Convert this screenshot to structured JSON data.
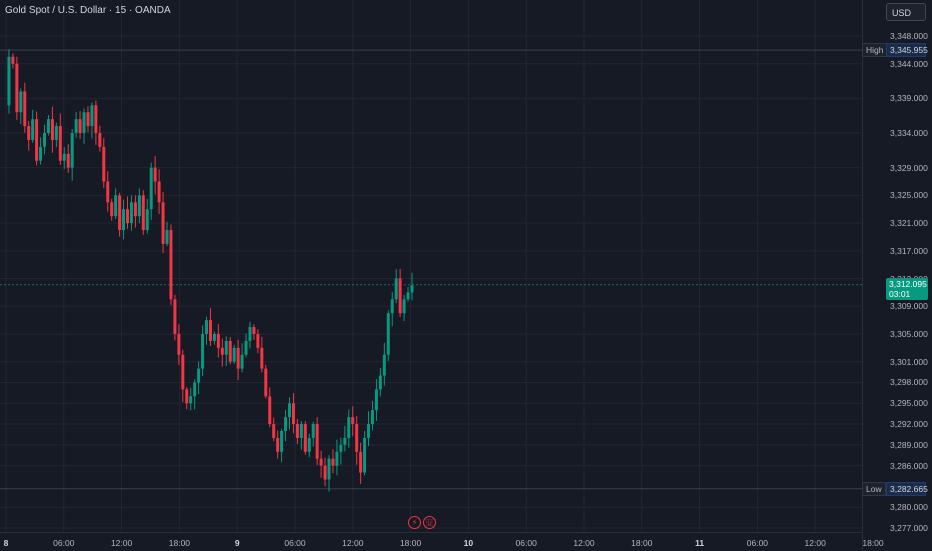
{
  "header": {
    "title": "Gold Spot / U.S. Dollar · 15 · OANDA"
  },
  "currency": "USD",
  "colors": {
    "up": "#089981",
    "down": "#f23645",
    "grid": "#232632",
    "line": "#3a3f4b"
  },
  "chart_data": {
    "type": "candlestick",
    "symbol": "Gold Spot / U.S. Dollar",
    "interval": "15",
    "source": "OANDA",
    "ylim": [
      3276,
      3350
    ],
    "price_ticks": [
      "3,348.000",
      "3,344.000",
      "3,339.000",
      "3,334.000",
      "3,329.000",
      "3,325.000",
      "3,321.000",
      "3,317.000",
      "3,313.000",
      "3,309.000",
      "3,305.000",
      "3,301.000",
      "3,298.000",
      "3,295.000",
      "3,292.000",
      "3,289.000",
      "3,286.000",
      "3,280.000",
      "3,277.000"
    ],
    "time_ticks": [
      {
        "label": "8",
        "day": true
      },
      {
        "label": "06:00",
        "day": false
      },
      {
        "label": "12:00",
        "day": false
      },
      {
        "label": "18:00",
        "day": false
      },
      {
        "label": "9",
        "day": true
      },
      {
        "label": "06:00",
        "day": false
      },
      {
        "label": "12:00",
        "day": false
      },
      {
        "label": "18:00",
        "day": false
      },
      {
        "label": "10",
        "day": true
      },
      {
        "label": "06:00",
        "day": false
      },
      {
        "label": "12:00",
        "day": false
      },
      {
        "label": "18:00",
        "day": false
      },
      {
        "label": "11",
        "day": true
      },
      {
        "label": "06:00",
        "day": false
      },
      {
        "label": "12:00",
        "day": false
      },
      {
        "label": "18:00",
        "day": false
      }
    ],
    "high": {
      "label": "High",
      "value": "3,345.955"
    },
    "low": {
      "label": "Low",
      "value": "3,282.665"
    },
    "last": {
      "value": "3,312.095",
      "countdown": "03:01"
    },
    "close_path": [
      3338,
      3345,
      3344,
      3337,
      3340,
      3335,
      3333,
      3336,
      3330,
      3332,
      3334,
      3336,
      3333,
      3335,
      3330,
      3331,
      3329,
      3334,
      3336,
      3334,
      3337,
      3335,
      3338,
      3334,
      3332,
      3327,
      3324,
      3322,
      3325,
      3320,
      3323,
      3321,
      3324,
      3322,
      3325,
      3320,
      3323,
      3329,
      3327,
      3324,
      3318,
      3320,
      3310,
      3305,
      3302,
      3297,
      3295,
      3296,
      3298,
      3300,
      3305,
      3307,
      3304,
      3305,
      3303,
      3302,
      3304,
      3301,
      3303,
      3300,
      3302,
      3304,
      3306,
      3305,
      3303,
      3300,
      3296,
      3292,
      3290,
      3288,
      3291,
      3293,
      3295,
      3292,
      3290,
      3292,
      3288,
      3290,
      3292,
      3287,
      3286,
      3284,
      3287,
      3286,
      3288,
      3289,
      3290,
      3293,
      3292,
      3288,
      3285,
      3290,
      3292,
      3294,
      3297,
      3299,
      3302,
      3308,
      3310,
      3313,
      3308,
      3310,
      3311,
      3312
    ]
  },
  "events": [
    {
      "icon": "lightning-icon",
      "glyph": "⚡"
    },
    {
      "icon": "us-flag-icon",
      "glyph": "🇺"
    }
  ]
}
